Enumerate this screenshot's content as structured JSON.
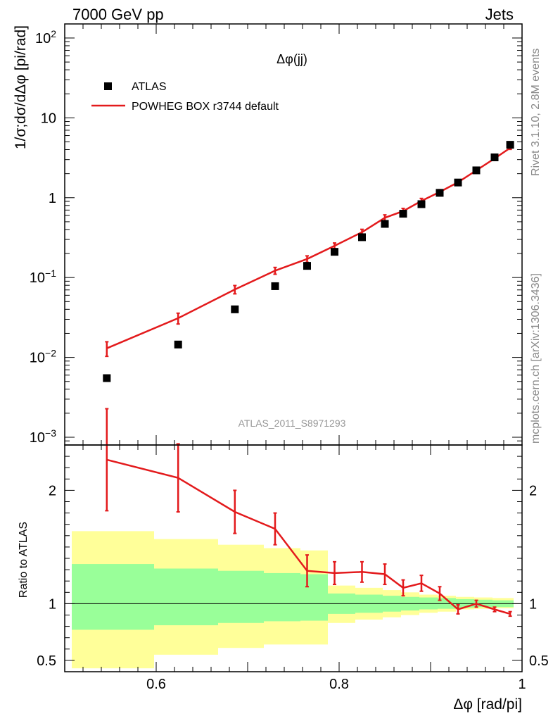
{
  "header": {
    "left": "7000 GeV pp",
    "right": "Jets"
  },
  "side_labels": {
    "upper": "Rivet 3.1.10,  2.8M events",
    "lower": "mcplots.cern.ch [arXiv:1306.3436]"
  },
  "chart_data": [
    {
      "type": "scatter",
      "title": "Δφ(jj)",
      "watermark": "ATLAS_2011_S8971293",
      "ylabel": "1/σ;dσ/dΔφ [pi/rad]",
      "yscale": "log",
      "ylim": [
        0.0008,
        150
      ],
      "xlim": [
        0.5,
        1.0
      ],
      "ytick_labels": [
        {
          "value": 0.001,
          "base": "10",
          "exp": "−3"
        },
        {
          "value": 0.01,
          "base": "10",
          "exp": "−2"
        },
        {
          "value": 0.1,
          "base": "10",
          "exp": "−1"
        },
        {
          "value": 1,
          "base": "1",
          "exp": ""
        },
        {
          "value": 10,
          "base": "10",
          "exp": ""
        },
        {
          "value": 100,
          "base": "10",
          "exp": "2"
        }
      ],
      "legend_position": "top-left",
      "series": [
        {
          "name": "ATLAS",
          "marker": "square",
          "color": "#000000",
          "x": [
            0.546,
            0.624,
            0.686,
            0.73,
            0.765,
            0.795,
            0.825,
            0.85,
            0.87,
            0.89,
            0.91,
            0.93,
            0.95,
            0.97,
            0.987
          ],
          "y": [
            0.0055,
            0.0145,
            0.04,
            0.078,
            0.14,
            0.21,
            0.32,
            0.47,
            0.63,
            0.83,
            1.15,
            1.55,
            2.2,
            3.2,
            4.6
          ]
        },
        {
          "name": "POWHEG BOX r3744 default",
          "marker": "line",
          "color": "#e31a1c",
          "x": [
            0.546,
            0.624,
            0.686,
            0.73,
            0.765,
            0.795,
            0.825,
            0.85,
            0.87,
            0.89,
            0.91,
            0.93,
            0.95,
            0.97,
            0.987
          ],
          "y": [
            0.013,
            0.031,
            0.071,
            0.122,
            0.171,
            0.25,
            0.37,
            0.56,
            0.68,
            0.91,
            1.18,
            1.56,
            2.2,
            3.1,
            4.2
          ],
          "yerr": [
            0.0027,
            0.0048,
            0.0085,
            0.012,
            0.016,
            0.021,
            0.032,
            0.05,
            0.055,
            0.07,
            0.08,
            0.09,
            0.11,
            0.14,
            0.17
          ]
        }
      ]
    },
    {
      "type": "line",
      "ylabel": "Ratio to ATLAS",
      "xlabel": "Δφ [rad/pi]",
      "ylim": [
        0.4,
        2.4
      ],
      "xlim": [
        0.5,
        1.0
      ],
      "yticks": [
        0.5,
        1,
        2
      ],
      "ytick_labels": [
        "0.5",
        "1",
        "2"
      ],
      "xticks": [
        0.6,
        0.8,
        1.0
      ],
      "xtick_labels": [
        "0.6",
        "0.8",
        "1"
      ],
      "reference_line": 1,
      "uncertainty_bands": {
        "edges": [
          0.5,
          0.59,
          0.66,
          0.71,
          0.75,
          0.78,
          0.81,
          0.84,
          0.86,
          0.88,
          0.9,
          0.92,
          0.94,
          0.96,
          0.98,
          1.0
        ],
        "yellow_lo": [
          0.43,
          0.55,
          0.61,
          0.64,
          0.64,
          0.83,
          0.86,
          0.88,
          0.9,
          0.92,
          0.93,
          0.95,
          0.955,
          0.96,
          0.96
        ],
        "yellow_hi": [
          1.64,
          1.57,
          1.52,
          1.49,
          1.47,
          1.16,
          1.14,
          1.12,
          1.1,
          1.08,
          1.07,
          1.06,
          1.055,
          1.05,
          1.05
        ],
        "green_lo": [
          0.77,
          0.81,
          0.83,
          0.845,
          0.85,
          0.91,
          0.92,
          0.93,
          0.94,
          0.95,
          0.955,
          0.965,
          0.97,
          0.97,
          0.97
        ],
        "green_hi": [
          1.35,
          1.31,
          1.29,
          1.27,
          1.26,
          1.09,
          1.08,
          1.07,
          1.06,
          1.055,
          1.05,
          1.04,
          1.035,
          1.03,
          1.03
        ],
        "yellow_color": "#ffff99",
        "green_color": "#99ff99"
      },
      "series": [
        {
          "name": "POWHEG BOX r3744 default",
          "color": "#e31a1c",
          "x": [
            0.546,
            0.624,
            0.686,
            0.73,
            0.765,
            0.795,
            0.825,
            0.85,
            0.87,
            0.89,
            0.91,
            0.93,
            0.95,
            0.97,
            0.987
          ],
          "y": [
            2.27,
            2.11,
            1.81,
            1.66,
            1.29,
            1.27,
            1.28,
            1.26,
            1.14,
            1.18,
            1.09,
            0.95,
            1.0,
            0.95,
            0.91
          ],
          "yerr": [
            0.45,
            0.3,
            0.19,
            0.14,
            0.14,
            0.1,
            0.09,
            0.09,
            0.07,
            0.07,
            0.06,
            0.04,
            0.03,
            0.02,
            0.02
          ]
        }
      ]
    }
  ]
}
